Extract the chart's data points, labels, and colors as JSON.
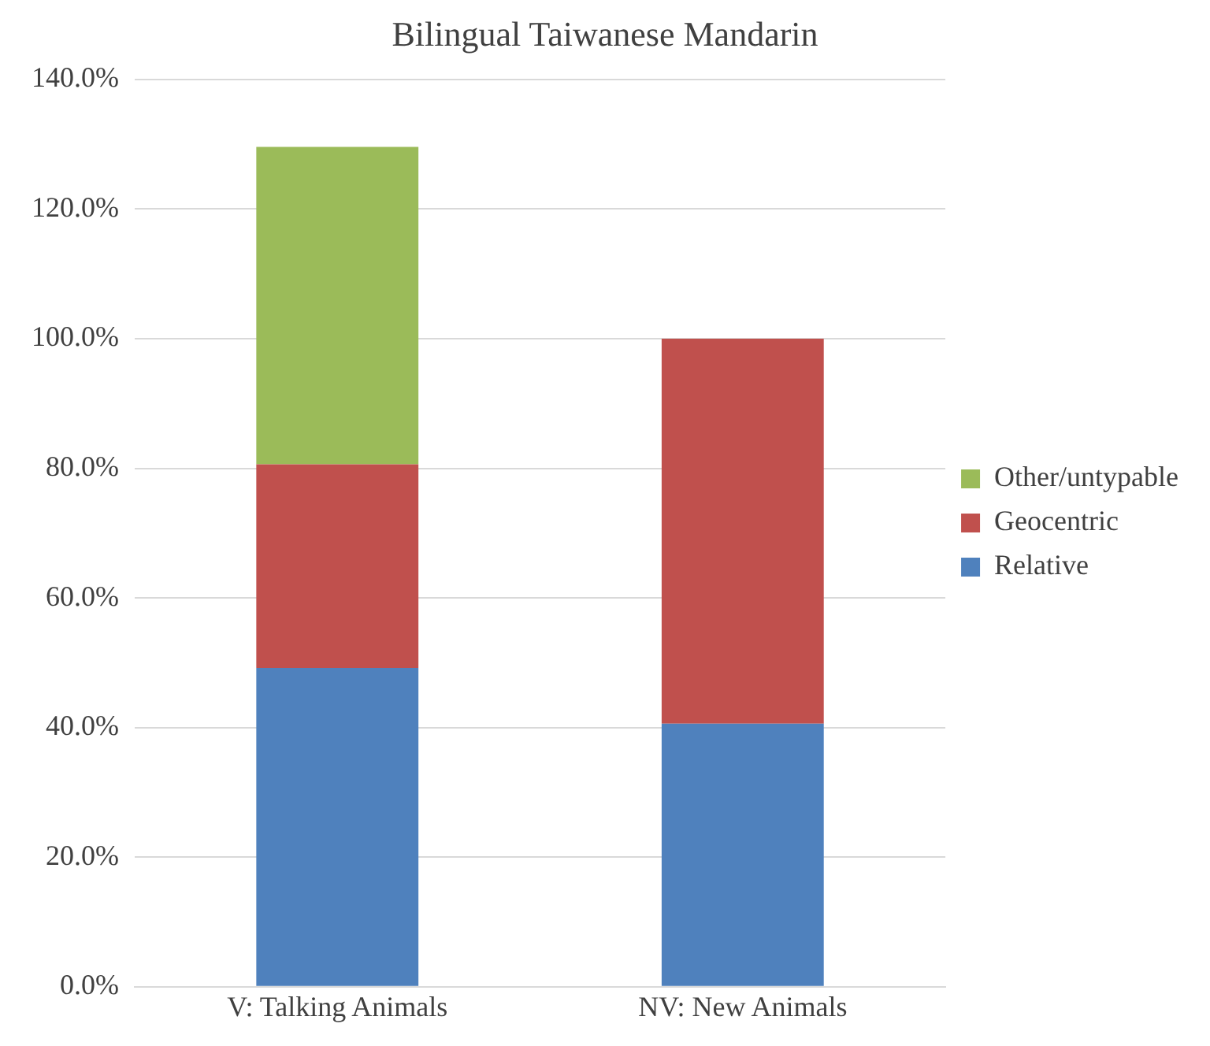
{
  "chart_data": {
    "type": "bar",
    "title": "Bilingual Taiwanese Mandarin",
    "categories": [
      "V: Talking Animals",
      "NV: New Animals"
    ],
    "stacked": true,
    "series": [
      {
        "name": "Relative",
        "color": "#4f81bd",
        "values": [
          49.2,
          40.6
        ]
      },
      {
        "name": "Geocentric",
        "color": "#c0504d",
        "values": [
          31.4,
          59.4
        ]
      },
      {
        "name": "Other/untypable",
        "color": "#9bbb59",
        "values": [
          49.0,
          null
        ]
      }
    ],
    "ylim": [
      0,
      140
    ],
    "yticks": [
      {
        "value": 0,
        "label": "0.0%"
      },
      {
        "value": 20,
        "label": "20.0%"
      },
      {
        "value": 40,
        "label": "40.0%"
      },
      {
        "value": 60,
        "label": "60.0%"
      },
      {
        "value": 80,
        "label": "80.0%"
      },
      {
        "value": 100,
        "label": "100.0%"
      },
      {
        "value": 120,
        "label": "120.0%"
      },
      {
        "value": 140,
        "label": "140.0%"
      }
    ],
    "grid": "y",
    "legend": "right"
  }
}
